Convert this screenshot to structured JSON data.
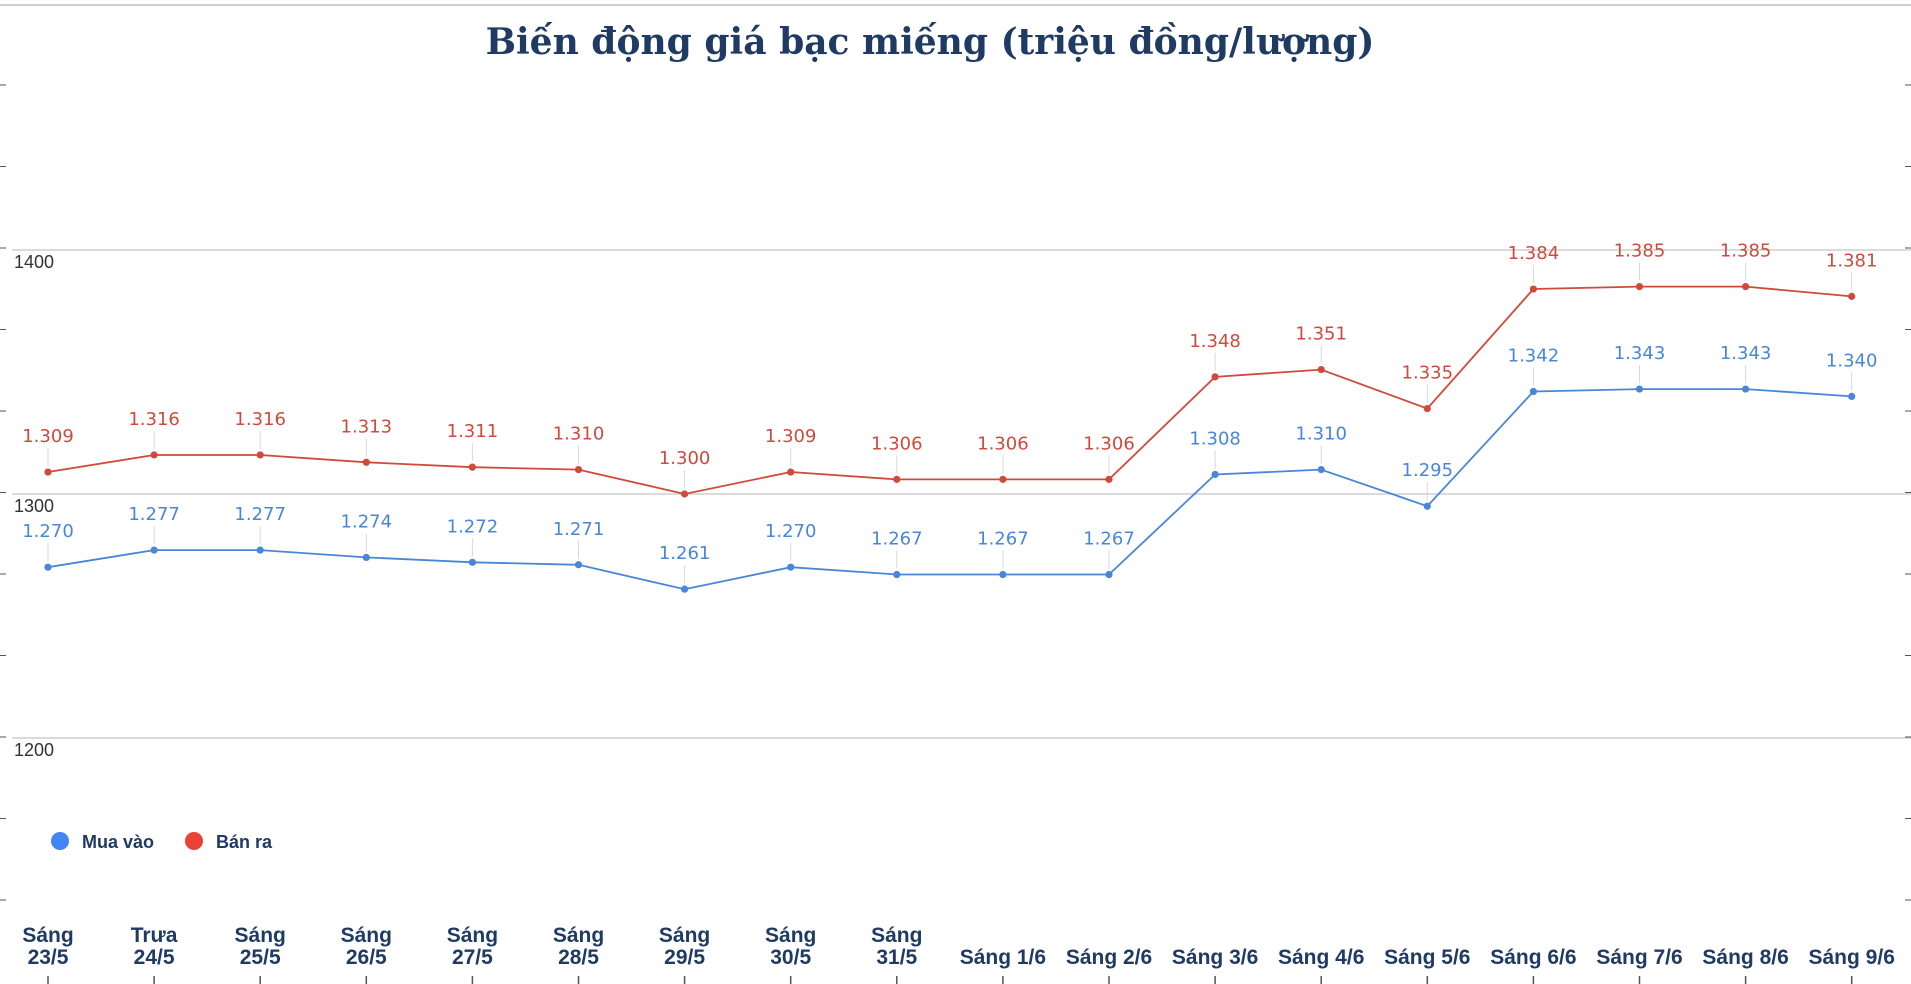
{
  "chart_data": {
    "type": "line",
    "title": "Biến động giá bạc miếng (triệu đồng/lượng)",
    "xlabel": "",
    "ylabel": "",
    "ylim": [
      1200,
      1400
    ],
    "yticks": [
      "1400",
      "1300",
      "1200"
    ],
    "grid": true,
    "legend_position": "bottom-left",
    "categories": [
      [
        "Sáng",
        "23/5"
      ],
      [
        "Trưa",
        "24/5"
      ],
      [
        "Sáng",
        "25/5"
      ],
      [
        "Sáng",
        "26/5"
      ],
      [
        "Sáng",
        "27/5"
      ],
      [
        "Sáng",
        "28/5"
      ],
      [
        "Sáng",
        "29/5"
      ],
      [
        "Sáng",
        "30/5"
      ],
      [
        "Sáng",
        "31/5"
      ],
      [
        "Sáng 1/6"
      ],
      [
        "Sáng 2/6"
      ],
      [
        "Sáng 3/6"
      ],
      [
        "Sáng 4/6"
      ],
      [
        "Sáng 5/6"
      ],
      [
        "Sáng 6/6"
      ],
      [
        "Sáng 7/6"
      ],
      [
        "Sáng 8/6"
      ],
      [
        "Sáng 9/6"
      ]
    ],
    "series": [
      {
        "name": "Mua vào",
        "color": "#4a86d8",
        "values": [
          1270,
          1277,
          1277,
          1274,
          1272,
          1271,
          1261,
          1270,
          1267,
          1267,
          1267,
          1308,
          1310,
          1295,
          1342,
          1343,
          1343,
          1340
        ],
        "labels": [
          "1.270",
          "1.277",
          "1.277",
          "1.274",
          "1.272",
          "1.271",
          "1.261",
          "1.270",
          "1.267",
          "1.267",
          "1.267",
          "1.308",
          "1.310",
          "1.295",
          "1.342",
          "1.343",
          "1.343",
          "1.340"
        ]
      },
      {
        "name": "Bán ra",
        "color": "#d04a3c",
        "values": [
          1309,
          1316,
          1316,
          1313,
          1311,
          1310,
          1300,
          1309,
          1306,
          1306,
          1306,
          1348,
          1351,
          1335,
          1384,
          1385,
          1385,
          1381
        ],
        "labels": [
          "1.309",
          "1.316",
          "1.316",
          "1.313",
          "1.311",
          "1.310",
          "1.300",
          "1.309",
          "1.306",
          "1.306",
          "1.306",
          "1.348",
          "1.351",
          "1.335",
          "1.384",
          "1.385",
          "1.385",
          "1.381"
        ]
      }
    ]
  }
}
